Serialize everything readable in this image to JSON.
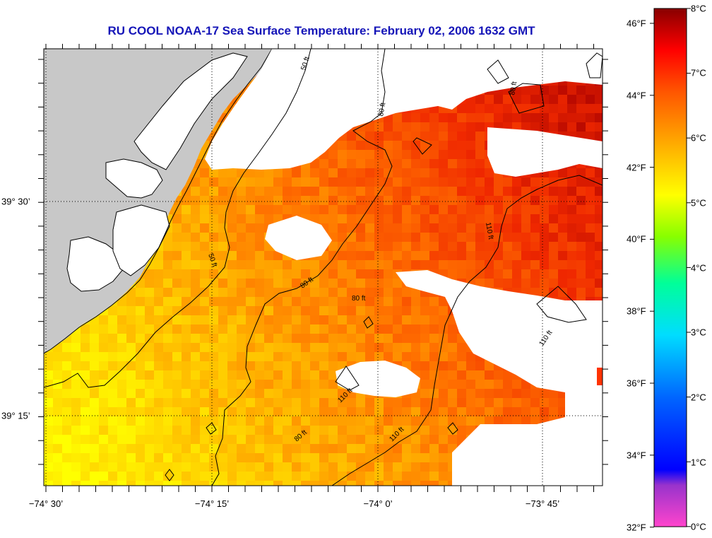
{
  "title": "RU COOL  NOAA-17  Sea Surface Temperature:  February 02, 2006 1632 GMT",
  "axes": {
    "x_ticks": [
      "−74° 30’",
      "−74° 15’",
      "−74° 0’",
      "−73° 45’"
    ],
    "y_ticks": [
      "39° 30’",
      "39° 15’"
    ]
  },
  "contour_labels": [
    "50 ft",
    "80 ft",
    "50 ft",
    "80 ft",
    "80 ft",
    "110 ft",
    "110 ft",
    "110 ft",
    "110 ft",
    "80 ft",
    "80 ft"
  ],
  "colorbar": {
    "fahrenheit": [
      "46°F",
      "44°F",
      "42°F",
      "40°F",
      "38°F",
      "36°F",
      "34°F",
      "32°F"
    ],
    "celsius": [
      "8°C",
      "7°C",
      "6°C",
      "5°C",
      "4°C",
      "3°C",
      "2°C",
      "1°C",
      "0°C"
    ],
    "colors": [
      "#ff44cc",
      "#6633cc",
      "#0000ff",
      "#0099ff",
      "#00ddff",
      "#00ff88",
      "#ffff00",
      "#ffaa00",
      "#ff4400",
      "#ff0000",
      "#880000"
    ]
  },
  "colors": {
    "title": "#1515b8",
    "land": "#c8c8c8",
    "sst_low": "#ffff00",
    "sst_high": "#cc0000"
  }
}
